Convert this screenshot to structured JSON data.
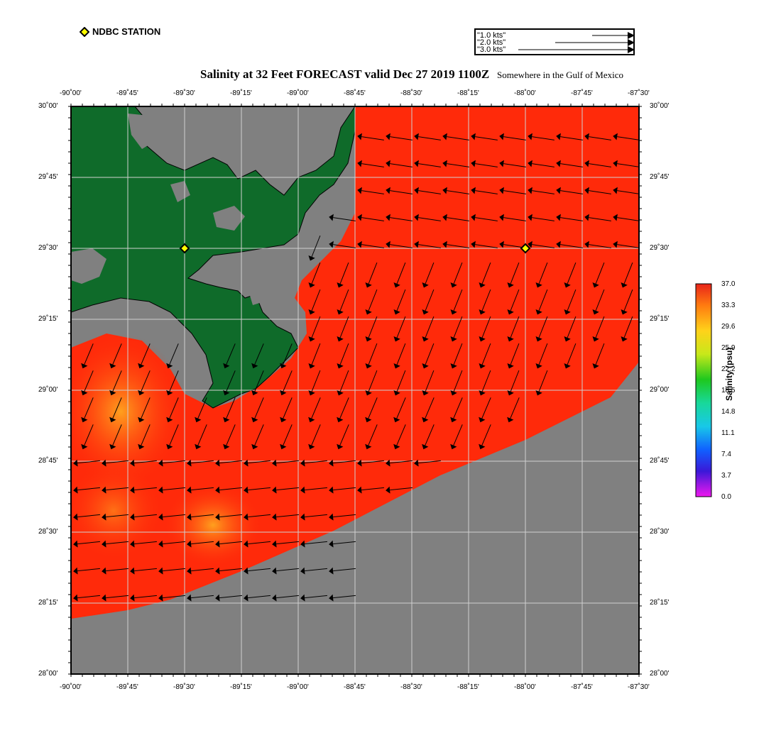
{
  "legend": {
    "station_label": "NDBC STATION",
    "speed_keys": [
      "\"1.0 kts\"",
      "\"2.0 kts\"",
      "\"3.0 kts\""
    ]
  },
  "title": "Salinity at 32 Feet FORECAST valid Dec 27 2019 1100Z",
  "subtitle": "Somewhere in the Gulf of Mexico",
  "axes": {
    "lon_labels": [
      "-90˚00'",
      "-89˚45'",
      "-89˚30'",
      "-89˚15'",
      "-89˚00'",
      "-88˚45'",
      "-88˚30'",
      "-88˚15'",
      "-88˚00'",
      "-87˚45'",
      "-87˚30'"
    ],
    "lat_labels": [
      "30˚00'",
      "29˚45'",
      "29˚30'",
      "29˚15'",
      "29˚00'",
      "28˚45'",
      "28˚30'",
      "28˚15'",
      "28˚00'"
    ]
  },
  "stations": [
    {
      "lon": -89.5,
      "lat": 29.5
    },
    {
      "lon": -88.0,
      "lat": 29.5
    }
  ],
  "colorbar": {
    "title": "Salinity (psu)",
    "ticks": [
      "37.0",
      "33.3",
      "29.6",
      "25.9",
      "22.2",
      "18.5",
      "14.8",
      "11.1",
      "7.4",
      "3.7",
      "0.0"
    ]
  },
  "colors": {
    "land": "#0f6b2a",
    "no_data": "#808080",
    "salinity_high": "#ff2a0a",
    "salinity_mid": "#ff8c14"
  }
}
